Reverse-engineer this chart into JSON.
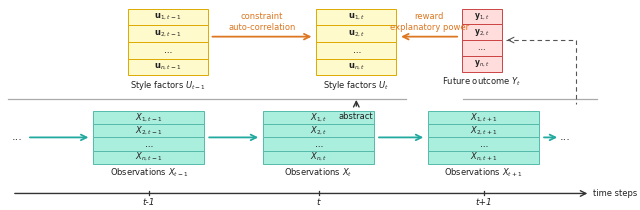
{
  "bg_color": "#ffffff",
  "obs_box_color": "#aaeedd",
  "obs_box_edge": "#55bbaa",
  "style_box_color": "#fffacc",
  "style_box_edge": "#ddaa00",
  "future_box_color": "#ffdddd",
  "future_box_edge": "#cc4444",
  "arrow_orange": "#dd7722",
  "dashed_color": "#555555",
  "obs_arrow_color": "#22aaa0",
  "abstract_arrow_color": "#333333",
  "timebar_color": "#333333",
  "text_color": "#222222",
  "orange_text": "#dd7722",
  "sep_color": "#aaaaaa",
  "style_rows_prev": [
    "\\mathbf{u}_{1,t-1}",
    "\\mathbf{u}_{2,t-1}",
    "\\cdots",
    "\\mathbf{u}_{n,t-1}"
  ],
  "style_rows_t": [
    "\\mathbf{u}_{1,t}",
    "\\mathbf{u}_{2,t}",
    "\\cdots",
    "\\mathbf{u}_{n,t}"
  ],
  "future_rows": [
    "\\mathbf{y}_{1,t}",
    "\\mathbf{y}_{2,t}",
    "\\cdots",
    "\\mathbf{y}_{n,t}"
  ],
  "obs_rows_prev": [
    "X_{1,t-1}",
    "X_{2,t-1}",
    "\\cdots",
    "X_{n,t-1}"
  ],
  "obs_rows_t": [
    "X_{1,t}",
    "X_{2,t}",
    "\\cdots",
    "X_{n,t}"
  ],
  "obs_rows_t1": [
    "X_{1,t+1}",
    "X_{2,t+1}",
    "\\cdots",
    "X_{n,t+1}"
  ],
  "label_obs_prev": "Observations $X_{t-1}$",
  "label_obs_t": "Observations $X_t$",
  "label_obs_t1": "Observations $X_{t+1}$",
  "label_style_prev": "Style factors $U_{t-1}$",
  "label_style_t": "Style factors $U_t$",
  "label_future": "Future outcome $Y_t$",
  "label_abstract": "abstract",
  "label_constraint": "constraint\nauto-correlation",
  "label_reward": "reward\nexplanatory power",
  "label_timesteps": "time steps",
  "tick_labels": [
    "t-1",
    "t",
    "t+1"
  ]
}
